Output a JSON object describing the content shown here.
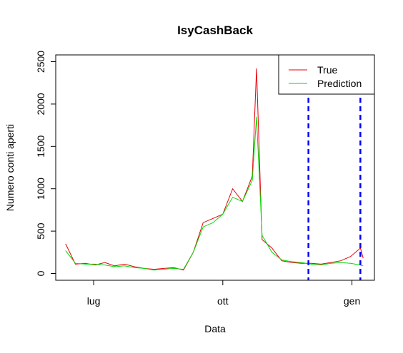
{
  "chart_data": {
    "type": "line",
    "title": "IsyCashBack",
    "xlabel": "Data",
    "ylabel": "Numero conti aperti",
    "x_ticks": [
      "lug",
      "ott",
      "gen"
    ],
    "x_tick_dates": [
      "2016-07-01",
      "2016-10-01",
      "2017-01-01"
    ],
    "y_ticks": [
      0,
      500,
      1000,
      1500,
      2000,
      2500
    ],
    "ylim": [
      -80,
      2580
    ],
    "xlim": [
      "2016-06-04",
      "2017-01-17"
    ],
    "grid": false,
    "legend_position": "top-right",
    "vlines": {
      "color": "#0000ff",
      "style": "dashed",
      "dates": [
        "2016-12-01",
        "2017-01-07"
      ]
    },
    "series": [
      {
        "name": "True",
        "color": "#e8000b",
        "x": [
          "2016-06-11",
          "2016-06-18",
          "2016-06-25",
          "2016-07-02",
          "2016-07-09",
          "2016-07-16",
          "2016-07-23",
          "2016-07-30",
          "2016-08-06",
          "2016-08-13",
          "2016-08-20",
          "2016-08-27",
          "2016-09-03",
          "2016-09-10",
          "2016-09-17",
          "2016-09-24",
          "2016-10-01",
          "2016-10-08",
          "2016-10-15",
          "2016-10-22",
          "2016-10-25",
          "2016-10-29",
          "2016-11-05",
          "2016-11-12",
          "2016-11-19",
          "2016-11-26",
          "2016-12-03",
          "2016-12-10",
          "2016-12-17",
          "2016-12-24",
          "2016-12-31",
          "2017-01-07",
          "2017-01-09"
        ],
        "values": [
          350,
          110,
          120,
          100,
          130,
          90,
          110,
          80,
          60,
          50,
          60,
          70,
          40,
          250,
          600,
          650,
          700,
          1000,
          850,
          1150,
          2420,
          400,
          300,
          150,
          130,
          120,
          120,
          110,
          130,
          150,
          200,
          300,
          180
        ]
      },
      {
        "name": "Prediction",
        "color": "#00dc00",
        "x": [
          "2016-06-11",
          "2016-06-18",
          "2016-06-25",
          "2016-07-02",
          "2016-07-09",
          "2016-07-16",
          "2016-07-23",
          "2016-07-30",
          "2016-08-06",
          "2016-08-13",
          "2016-08-20",
          "2016-08-27",
          "2016-09-03",
          "2016-09-10",
          "2016-09-17",
          "2016-09-24",
          "2016-10-01",
          "2016-10-08",
          "2016-10-15",
          "2016-10-22",
          "2016-10-25",
          "2016-10-29",
          "2016-11-05",
          "2016-11-12",
          "2016-11-19",
          "2016-11-26",
          "2016-12-03",
          "2016-12-10",
          "2016-12-17",
          "2016-12-24",
          "2016-12-31",
          "2017-01-07",
          "2017-01-09"
        ],
        "values": [
          270,
          120,
          110,
          110,
          100,
          80,
          90,
          70,
          60,
          40,
          50,
          60,
          50,
          250,
          550,
          600,
          700,
          900,
          850,
          1100,
          1850,
          450,
          250,
          160,
          140,
          130,
          110,
          100,
          120,
          130,
          120,
          100,
          90
        ]
      }
    ]
  }
}
